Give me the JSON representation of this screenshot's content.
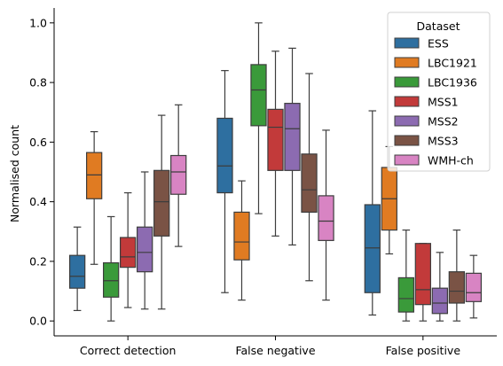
{
  "chart_data": {
    "type": "boxplot",
    "title": "",
    "xlabel": "",
    "ylabel": "Normalised count",
    "ylim": [
      -0.05,
      1.05
    ],
    "yticks": [
      "0.0",
      "0.2",
      "0.4",
      "0.6",
      "0.8",
      "1.0"
    ],
    "categories": [
      "Correct detection",
      "False negative",
      "False positive"
    ],
    "legend": {
      "title": "Dataset",
      "position": "top-right"
    },
    "colors": {
      "ESS": "#2e6fa0",
      "LBC1921": "#e07b22",
      "LBC1936": "#3a9a3a",
      "MSS1": "#c23a3a",
      "MSS2": "#8c6bb1",
      "MSS3": "#7a5345",
      "WMH-ch": "#d884c3"
    },
    "series": [
      {
        "name": "ESS",
        "stats": [
          {
            "whislo": 0.035,
            "q1": 0.11,
            "med": 0.15,
            "q3": 0.22,
            "whishi": 0.315
          },
          {
            "whislo": 0.095,
            "q1": 0.43,
            "med": 0.52,
            "q3": 0.68,
            "whishi": 0.84
          },
          {
            "whislo": 0.02,
            "q1": 0.095,
            "med": 0.245,
            "q3": 0.39,
            "whishi": 0.705
          }
        ]
      },
      {
        "name": "LBC1921",
        "stats": [
          {
            "whislo": 0.19,
            "q1": 0.41,
            "med": 0.49,
            "q3": 0.565,
            "whishi": 0.635
          },
          {
            "whislo": 0.07,
            "q1": 0.205,
            "med": 0.265,
            "q3": 0.365,
            "whishi": 0.47
          },
          {
            "whislo": 0.225,
            "q1": 0.305,
            "med": 0.41,
            "q3": 0.515,
            "whishi": 0.585
          }
        ]
      },
      {
        "name": "LBC1936",
        "stats": [
          {
            "whislo": 0.0,
            "q1": 0.08,
            "med": 0.135,
            "q3": 0.195,
            "whishi": 0.35
          },
          {
            "whislo": 0.36,
            "q1": 0.655,
            "med": 0.775,
            "q3": 0.86,
            "whishi": 1.0
          },
          {
            "whislo": 0.0,
            "q1": 0.03,
            "med": 0.075,
            "q3": 0.145,
            "whishi": 0.305
          }
        ]
      },
      {
        "name": "MSS1",
        "stats": [
          {
            "whislo": 0.045,
            "q1": 0.18,
            "med": 0.215,
            "q3": 0.28,
            "whishi": 0.43
          },
          {
            "whislo": 0.285,
            "q1": 0.505,
            "med": 0.65,
            "q3": 0.71,
            "whishi": 0.905
          },
          {
            "whislo": 0.0,
            "q1": 0.055,
            "med": 0.105,
            "q3": 0.26,
            "whishi": 0.26
          }
        ]
      },
      {
        "name": "MSS2",
        "stats": [
          {
            "whislo": 0.04,
            "q1": 0.165,
            "med": 0.23,
            "q3": 0.315,
            "whishi": 0.5
          },
          {
            "whislo": 0.255,
            "q1": 0.505,
            "med": 0.645,
            "q3": 0.73,
            "whishi": 0.915
          },
          {
            "whislo": 0.0,
            "q1": 0.025,
            "med": 0.06,
            "q3": 0.11,
            "whishi": 0.23
          }
        ]
      },
      {
        "name": "MSS3",
        "stats": [
          {
            "whislo": 0.04,
            "q1": 0.285,
            "med": 0.4,
            "q3": 0.505,
            "whishi": 0.69
          },
          {
            "whislo": 0.135,
            "q1": 0.365,
            "med": 0.44,
            "q3": 0.56,
            "whishi": 0.83
          },
          {
            "whislo": 0.0,
            "q1": 0.06,
            "med": 0.1,
            "q3": 0.165,
            "whishi": 0.305
          }
        ]
      },
      {
        "name": "WMH-ch",
        "stats": [
          {
            "whislo": 0.25,
            "q1": 0.425,
            "med": 0.5,
            "q3": 0.555,
            "whishi": 0.725
          },
          {
            "whislo": 0.07,
            "q1": 0.27,
            "med": 0.335,
            "q3": 0.42,
            "whishi": 0.64
          },
          {
            "whislo": 0.01,
            "q1": 0.065,
            "med": 0.095,
            "q3": 0.16,
            "whishi": 0.22
          }
        ]
      }
    ]
  }
}
